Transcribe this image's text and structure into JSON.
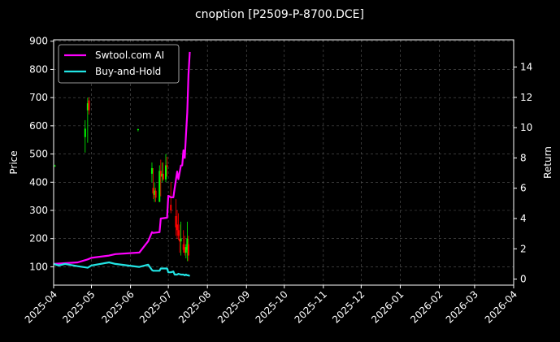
{
  "chart_data": {
    "type": "candlestick+line",
    "title": "cnoption [P2509-P-8700.DCE]",
    "ylabel_left": "Price",
    "ylabel_right": "Return",
    "ylim_left": [
      35,
      905
    ],
    "ylim_right": [
      -0.4,
      15.8
    ],
    "xlim": [
      "2025-04-01",
      "2026-04-01"
    ],
    "left_ticks": [
      "100",
      "200",
      "300",
      "400",
      "500",
      "600",
      "700",
      "800",
      "900"
    ],
    "right_ticks": [
      "0",
      "2",
      "4",
      "6",
      "8",
      "10",
      "12",
      "14"
    ],
    "x_ticks": [
      "2025-04",
      "2025-05",
      "2025-06",
      "2025-07",
      "2025-08",
      "2025-09",
      "2025-10",
      "2025-11",
      "2025-12",
      "2026-01",
      "2026-02",
      "2026-03",
      "2026-04"
    ],
    "grid": true,
    "legend_placement": "top-left",
    "legend": [
      "Swtool.com AI",
      "Buy-and-Hold"
    ],
    "colors": {
      "ai": "#ff00ff",
      "bh": "#22e5e5",
      "up": "#00ff00",
      "down": "#ff0000",
      "background": "#000000",
      "foreground": "#ffffff"
    },
    "candles": [
      {
        "date": "2025-04-02",
        "open": 458,
        "high": 462,
        "low": 455,
        "close": 459
      },
      {
        "date": "2025-04-26",
        "open": 560,
        "high": 620,
        "low": 505,
        "close": 590
      },
      {
        "date": "2025-04-28",
        "open": 655,
        "high": 700,
        "low": 540,
        "close": 680
      },
      {
        "date": "2025-04-29",
        "open": 690,
        "high": 700,
        "low": 640,
        "close": 655
      },
      {
        "date": "2025-06-07",
        "open": 585,
        "high": 590,
        "low": 580,
        "close": 588
      },
      {
        "date": "2025-06-18",
        "open": 430,
        "high": 470,
        "low": 400,
        "close": 450
      },
      {
        "date": "2025-06-19",
        "open": 380,
        "high": 450,
        "low": 340,
        "close": 360
      },
      {
        "date": "2025-06-20",
        "open": 355,
        "high": 400,
        "low": 330,
        "close": 370
      },
      {
        "date": "2025-06-21",
        "open": 370,
        "high": 380,
        "low": 330,
        "close": 345
      },
      {
        "date": "2025-06-24",
        "open": 330,
        "high": 460,
        "low": 330,
        "close": 440
      },
      {
        "date": "2025-06-25",
        "open": 440,
        "high": 480,
        "low": 350,
        "close": 420
      },
      {
        "date": "2025-06-26",
        "open": 420,
        "high": 470,
        "low": 400,
        "close": 430
      },
      {
        "date": "2025-06-27",
        "open": 430,
        "high": 470,
        "low": 405,
        "close": 410
      },
      {
        "date": "2025-06-29",
        "open": 410,
        "high": 500,
        "low": 400,
        "close": 460
      },
      {
        "date": "2025-06-30",
        "open": 460,
        "high": 490,
        "low": 420,
        "close": 455
      },
      {
        "date": "2025-07-03",
        "open": 320,
        "high": 400,
        "low": 290,
        "close": 300
      },
      {
        "date": "2025-07-07",
        "open": 280,
        "high": 340,
        "low": 210,
        "close": 240
      },
      {
        "date": "2025-07-08",
        "open": 250,
        "high": 300,
        "low": 200,
        "close": 230
      },
      {
        "date": "2025-07-09",
        "open": 230,
        "high": 290,
        "low": 195,
        "close": 210
      },
      {
        "date": "2025-07-10",
        "open": 200,
        "high": 250,
        "low": 150,
        "close": 190
      },
      {
        "date": "2025-07-11",
        "open": 190,
        "high": 260,
        "low": 140,
        "close": 200
      },
      {
        "date": "2025-07-13",
        "open": 180,
        "high": 230,
        "low": 150,
        "close": 160
      },
      {
        "date": "2025-07-14",
        "open": 170,
        "high": 210,
        "low": 140,
        "close": 150
      },
      {
        "date": "2025-07-15",
        "open": 150,
        "high": 180,
        "low": 130,
        "close": 170
      },
      {
        "date": "2025-07-16",
        "open": 160,
        "high": 260,
        "low": 120,
        "close": 200
      },
      {
        "date": "2025-07-17",
        "open": 180,
        "high": 210,
        "low": 120,
        "close": 140
      }
    ],
    "series": [
      {
        "name": "Swtool.com AI",
        "x": [
          "2025-04-01",
          "2025-04-05",
          "2025-04-10",
          "2025-04-20",
          "2025-04-28",
          "2025-05-01",
          "2025-05-15",
          "2025-05-20",
          "2025-06-08",
          "2025-06-15",
          "2025-06-18",
          "2025-06-19",
          "2025-06-24",
          "2025-06-25",
          "2025-06-30",
          "2025-07-01",
          "2025-07-03",
          "2025-07-05",
          "2025-07-06",
          "2025-07-08",
          "2025-07-09",
          "2025-07-11",
          "2025-07-12",
          "2025-07-13",
          "2025-07-14",
          "2025-07-15",
          "2025-07-16",
          "2025-07-17",
          "2025-07-18"
        ],
        "values": [
          1.0,
          1.02,
          1.05,
          1.1,
          1.3,
          1.4,
          1.55,
          1.65,
          1.75,
          2.5,
          3.1,
          3.05,
          3.1,
          4.0,
          4.05,
          5.5,
          5.4,
          5.4,
          6.0,
          7.1,
          6.6,
          7.5,
          7.5,
          8.5,
          8.0,
          9.5,
          11.0,
          13.5,
          15.0
        ]
      },
      {
        "name": "Buy-and-Hold",
        "x": [
          "2025-04-01",
          "2025-04-05",
          "2025-04-10",
          "2025-04-20",
          "2025-04-28",
          "2025-05-01",
          "2025-05-15",
          "2025-05-20",
          "2025-06-08",
          "2025-06-15",
          "2025-06-18",
          "2025-06-19",
          "2025-06-24",
          "2025-06-25",
          "2025-06-30",
          "2025-07-01",
          "2025-07-03",
          "2025-07-05",
          "2025-07-06",
          "2025-07-08",
          "2025-07-09",
          "2025-07-11",
          "2025-07-12",
          "2025-07-13",
          "2025-07-14",
          "2025-07-15",
          "2025-07-16",
          "2025-07-17",
          "2025-07-18"
        ],
        "values": [
          1.0,
          0.9,
          1.0,
          0.85,
          0.75,
          0.9,
          1.1,
          1.0,
          0.8,
          0.95,
          0.6,
          0.55,
          0.55,
          0.7,
          0.7,
          0.45,
          0.45,
          0.5,
          0.3,
          0.3,
          0.35,
          0.3,
          0.3,
          0.3,
          0.25,
          0.3,
          0.25,
          0.25,
          0.2
        ]
      }
    ]
  }
}
